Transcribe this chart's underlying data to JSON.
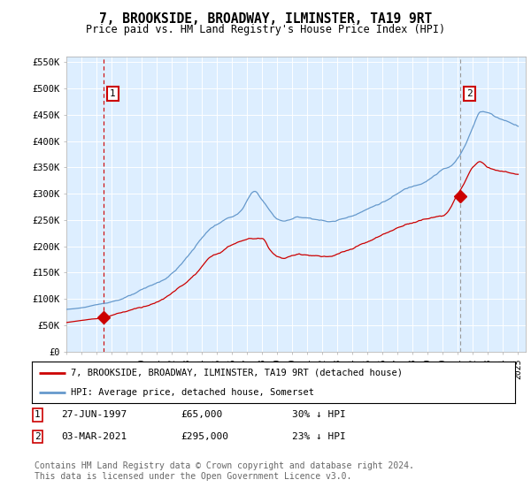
{
  "title": "7, BROOKSIDE, BROADWAY, ILMINSTER, TA19 9RT",
  "subtitle": "Price paid vs. HM Land Registry's House Price Index (HPI)",
  "sale1_date": 1997.49,
  "sale1_price": 65000,
  "sale1_label": "1",
  "sale1_date_str": "27-JUN-1997",
  "sale1_price_str": "£65,000",
  "sale1_hpi_str": "30% ↓ HPI",
  "sale2_date": 2021.17,
  "sale2_price": 295000,
  "sale2_label": "2",
  "sale2_date_str": "03-MAR-2021",
  "sale2_price_str": "£295,000",
  "sale2_hpi_str": "23% ↓ HPI",
  "legend_line1": "7, BROOKSIDE, BROADWAY, ILMINSTER, TA19 9RT (detached house)",
  "legend_line2": "HPI: Average price, detached house, Somerset",
  "footer": "Contains HM Land Registry data © Crown copyright and database right 2024.\nThis data is licensed under the Open Government Licence v3.0.",
  "red_color": "#cc0000",
  "blue_color": "#6699cc",
  "plot_bg": "#ddeeff",
  "grid_color": "#ffffff",
  "ylim_min": 0,
  "ylim_max": 560000,
  "xlim_min": 1995.0,
  "xlim_max": 2025.5,
  "sale1_vline_color": "#cc0000",
  "sale1_vline_style": "dashed",
  "sale2_vline_color": "#999999",
  "sale2_vline_style": "dashed"
}
